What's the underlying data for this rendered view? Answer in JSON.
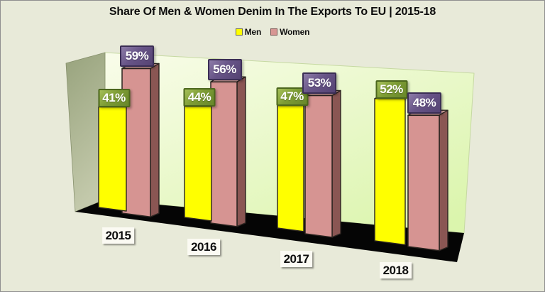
{
  "title": "Share Of Men & Women Denim In The Exports To EU | 2015-18",
  "legend": {
    "items": [
      {
        "label": "Men",
        "swatch_color": "#ffff00",
        "swatch_border": "#6b6b4a"
      },
      {
        "label": "Women",
        "swatch_color": "#d79693",
        "swatch_border": "#7a5553"
      }
    ]
  },
  "chart_data": {
    "type": "bar",
    "style": "3d-clustered-column",
    "title": "Share Of Men & Women Denim In The Exports To EU | 2015-18",
    "categories": [
      "2015",
      "2016",
      "2017",
      "2018"
    ],
    "series": [
      {
        "name": "Men",
        "values": [
          41,
          44,
          47,
          52
        ]
      },
      {
        "name": "Women",
        "values": [
          59,
          56,
          53,
          48
        ]
      }
    ],
    "unit": "%",
    "ylim": [
      0,
      100
    ],
    "legend_position": "top",
    "data_labels": true,
    "ticks_visible": false,
    "grid": false
  },
  "colors": {
    "page_bg": "#e8ead9",
    "back_wall_top": "#f9fcea",
    "back_wall_bottom": "#dbf5ad",
    "back_wall_edge": "#c6d9a2",
    "left_wall_top": "#98a37d",
    "left_wall_bottom": "#c3c9ab",
    "left_wall_edge": "#86906c",
    "floor": "#050505",
    "men_bar_front": "#ffff00",
    "men_bar_top": "#f4f4ae",
    "women_bar_front": "#d69492",
    "women_bar_top": "#dfaba6",
    "women_bar_side": "#8a5653",
    "bar_outline": "#2b2420",
    "men_label_bg": "#7d9c35",
    "men_label_border": "#4c671d",
    "women_label_bg": "#675487",
    "women_label_border": "#3b2e55"
  }
}
